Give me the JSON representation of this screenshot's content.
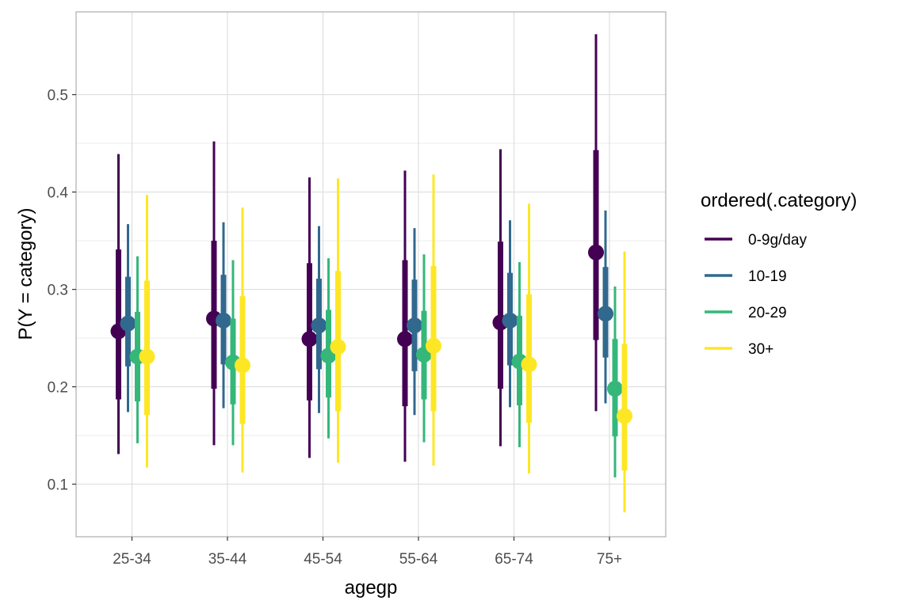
{
  "chart_data": {
    "type": "pointrange",
    "xlabel": "agegp",
    "ylabel": "P(Y = category)",
    "legend_title": "ordered(.category)",
    "legend_position": "right",
    "grid": true,
    "ylim": [
      0.046,
      0.585
    ],
    "y_ticks": [
      0.1,
      0.2,
      0.3,
      0.4,
      0.5
    ],
    "y_tick_labels": [
      "0.1",
      "0.2",
      "0.3",
      "0.4",
      "0.5"
    ],
    "categories": [
      "25-34",
      "35-44",
      "45-54",
      "55-64",
      "65-74",
      "75+"
    ],
    "series": [
      {
        "name": "0-9g/day",
        "color": "#440154",
        "points": [
          {
            "y": 0.257,
            "lo66": 0.187,
            "hi66": 0.341,
            "lo95": 0.131,
            "hi95": 0.439
          },
          {
            "y": 0.27,
            "lo66": 0.198,
            "hi66": 0.35,
            "lo95": 0.14,
            "hi95": 0.452
          },
          {
            "y": 0.249,
            "lo66": 0.186,
            "hi66": 0.327,
            "lo95": 0.127,
            "hi95": 0.415
          },
          {
            "y": 0.249,
            "lo66": 0.18,
            "hi66": 0.33,
            "lo95": 0.123,
            "hi95": 0.422
          },
          {
            "y": 0.266,
            "lo66": 0.198,
            "hi66": 0.349,
            "lo95": 0.139,
            "hi95": 0.444
          },
          {
            "y": 0.338,
            "lo66": 0.248,
            "hi66": 0.443,
            "lo95": 0.175,
            "hi95": 0.562
          }
        ]
      },
      {
        "name": "10-19",
        "color": "#31688E",
        "points": [
          {
            "y": 0.265,
            "lo66": 0.221,
            "hi66": 0.313,
            "lo95": 0.174,
            "hi95": 0.367
          },
          {
            "y": 0.268,
            "lo66": 0.223,
            "hi66": 0.315,
            "lo95": 0.178,
            "hi95": 0.369
          },
          {
            "y": 0.263,
            "lo66": 0.218,
            "hi66": 0.311,
            "lo95": 0.173,
            "hi95": 0.365
          },
          {
            "y": 0.263,
            "lo66": 0.216,
            "hi66": 0.31,
            "lo95": 0.171,
            "hi95": 0.363
          },
          {
            "y": 0.268,
            "lo66": 0.222,
            "hi66": 0.317,
            "lo95": 0.179,
            "hi95": 0.371
          },
          {
            "y": 0.275,
            "lo66": 0.23,
            "hi66": 0.323,
            "lo95": 0.183,
            "hi95": 0.381
          }
        ]
      },
      {
        "name": "20-29",
        "color": "#35B779",
        "points": [
          {
            "y": 0.231,
            "lo66": 0.185,
            "hi66": 0.277,
            "lo95": 0.142,
            "hi95": 0.334
          },
          {
            "y": 0.225,
            "lo66": 0.182,
            "hi66": 0.27,
            "lo95": 0.14,
            "hi95": 0.33
          },
          {
            "y": 0.232,
            "lo66": 0.189,
            "hi66": 0.279,
            "lo95": 0.147,
            "hi95": 0.332
          },
          {
            "y": 0.233,
            "lo66": 0.187,
            "hi66": 0.278,
            "lo95": 0.143,
            "hi95": 0.336
          },
          {
            "y": 0.226,
            "lo66": 0.181,
            "hi66": 0.273,
            "lo95": 0.138,
            "hi95": 0.328
          },
          {
            "y": 0.198,
            "lo66": 0.149,
            "hi66": 0.249,
            "lo95": 0.107,
            "hi95": 0.303
          }
        ]
      },
      {
        "name": "30+",
        "color": "#FDE725",
        "points": [
          {
            "y": 0.231,
            "lo66": 0.171,
            "hi66": 0.309,
            "lo95": 0.117,
            "hi95": 0.397
          },
          {
            "y": 0.222,
            "lo66": 0.162,
            "hi66": 0.293,
            "lo95": 0.112,
            "hi95": 0.384
          },
          {
            "y": 0.241,
            "lo66": 0.175,
            "hi66": 0.319,
            "lo95": 0.122,
            "hi95": 0.414
          },
          {
            "y": 0.242,
            "lo66": 0.175,
            "hi66": 0.324,
            "lo95": 0.119,
            "hi95": 0.418
          },
          {
            "y": 0.223,
            "lo66": 0.163,
            "hi66": 0.295,
            "lo95": 0.111,
            "hi95": 0.388
          },
          {
            "y": 0.17,
            "lo66": 0.114,
            "hi66": 0.244,
            "lo95": 0.071,
            "hi95": 0.339
          }
        ]
      }
    ]
  }
}
